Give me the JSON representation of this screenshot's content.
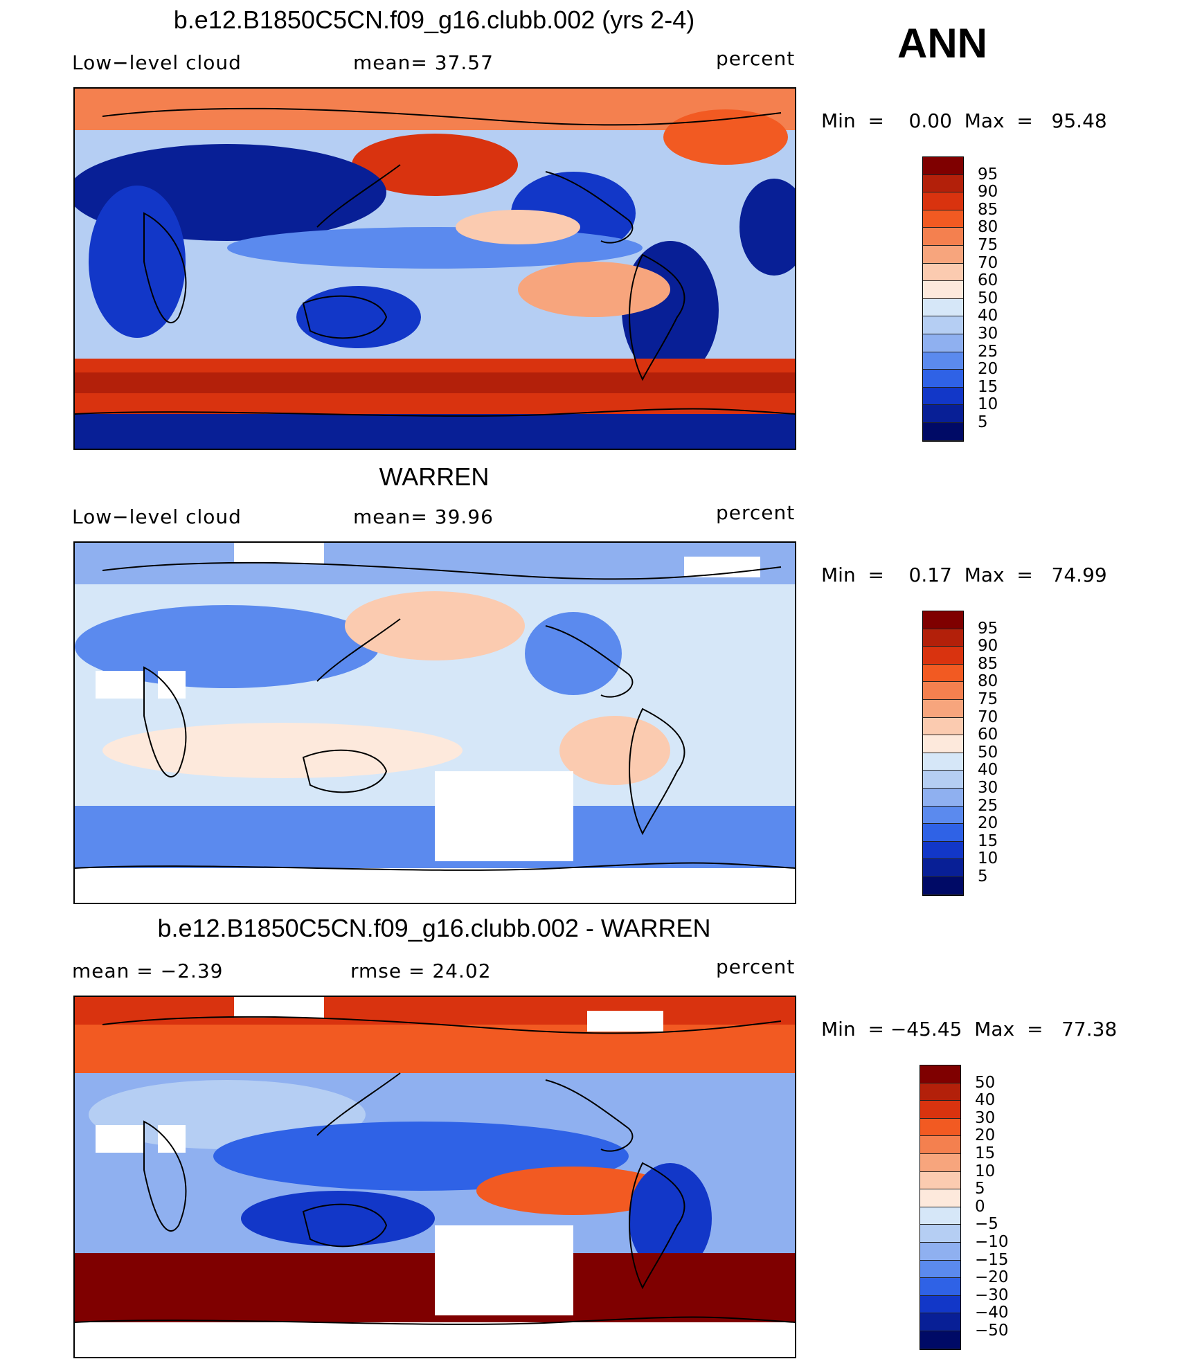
{
  "season": "ANN",
  "panels": [
    {
      "title": "b.e12.B1850C5CN.f09_g16.clubb.002 (yrs 2-4)",
      "left_text": "Low−level cloud",
      "mid_text": "mean=   37.57",
      "units": "percent",
      "minmax": "Min  =    0.00  Max  =   95.48",
      "colorbar_labels": [
        "95",
        "90",
        "85",
        "80",
        "75",
        "70",
        "60",
        "50",
        "40",
        "30",
        "25",
        "20",
        "15",
        "10",
        "5"
      ]
    },
    {
      "title": "WARREN",
      "left_text": "Low−level cloud",
      "mid_text": "mean=   39.96",
      "units": "percent",
      "minmax": "Min  =    0.17  Max  =   74.99",
      "colorbar_labels": [
        "95",
        "90",
        "85",
        "80",
        "75",
        "70",
        "60",
        "50",
        "40",
        "30",
        "25",
        "20",
        "15",
        "10",
        "5"
      ]
    },
    {
      "title": "b.e12.B1850C5CN.f09_g16.clubb.002 - WARREN",
      "left_text": "mean  =   −2.39",
      "mid_text": "rmse  =   24.02",
      "units": "percent",
      "minmax": "Min  = −45.45  Max  =   77.38",
      "colorbar_labels": [
        "50",
        "40",
        "30",
        "20",
        "15",
        "10",
        "5",
        "0",
        "−5",
        "−10",
        "−15",
        "−20",
        "−30",
        "−40",
        "−50"
      ]
    }
  ],
  "colors": {
    "scale": [
      "#7f0000",
      "#b3200a",
      "#d9330f",
      "#f25a22",
      "#f4804f",
      "#f7a57d",
      "#fbcbb0",
      "#fde9dc",
      "#d6e7f8",
      "#b5cef3",
      "#8fb0f0",
      "#5b8aee",
      "#2f62e6",
      "#1237c8",
      "#081f96",
      "#000a66"
    ]
  }
}
